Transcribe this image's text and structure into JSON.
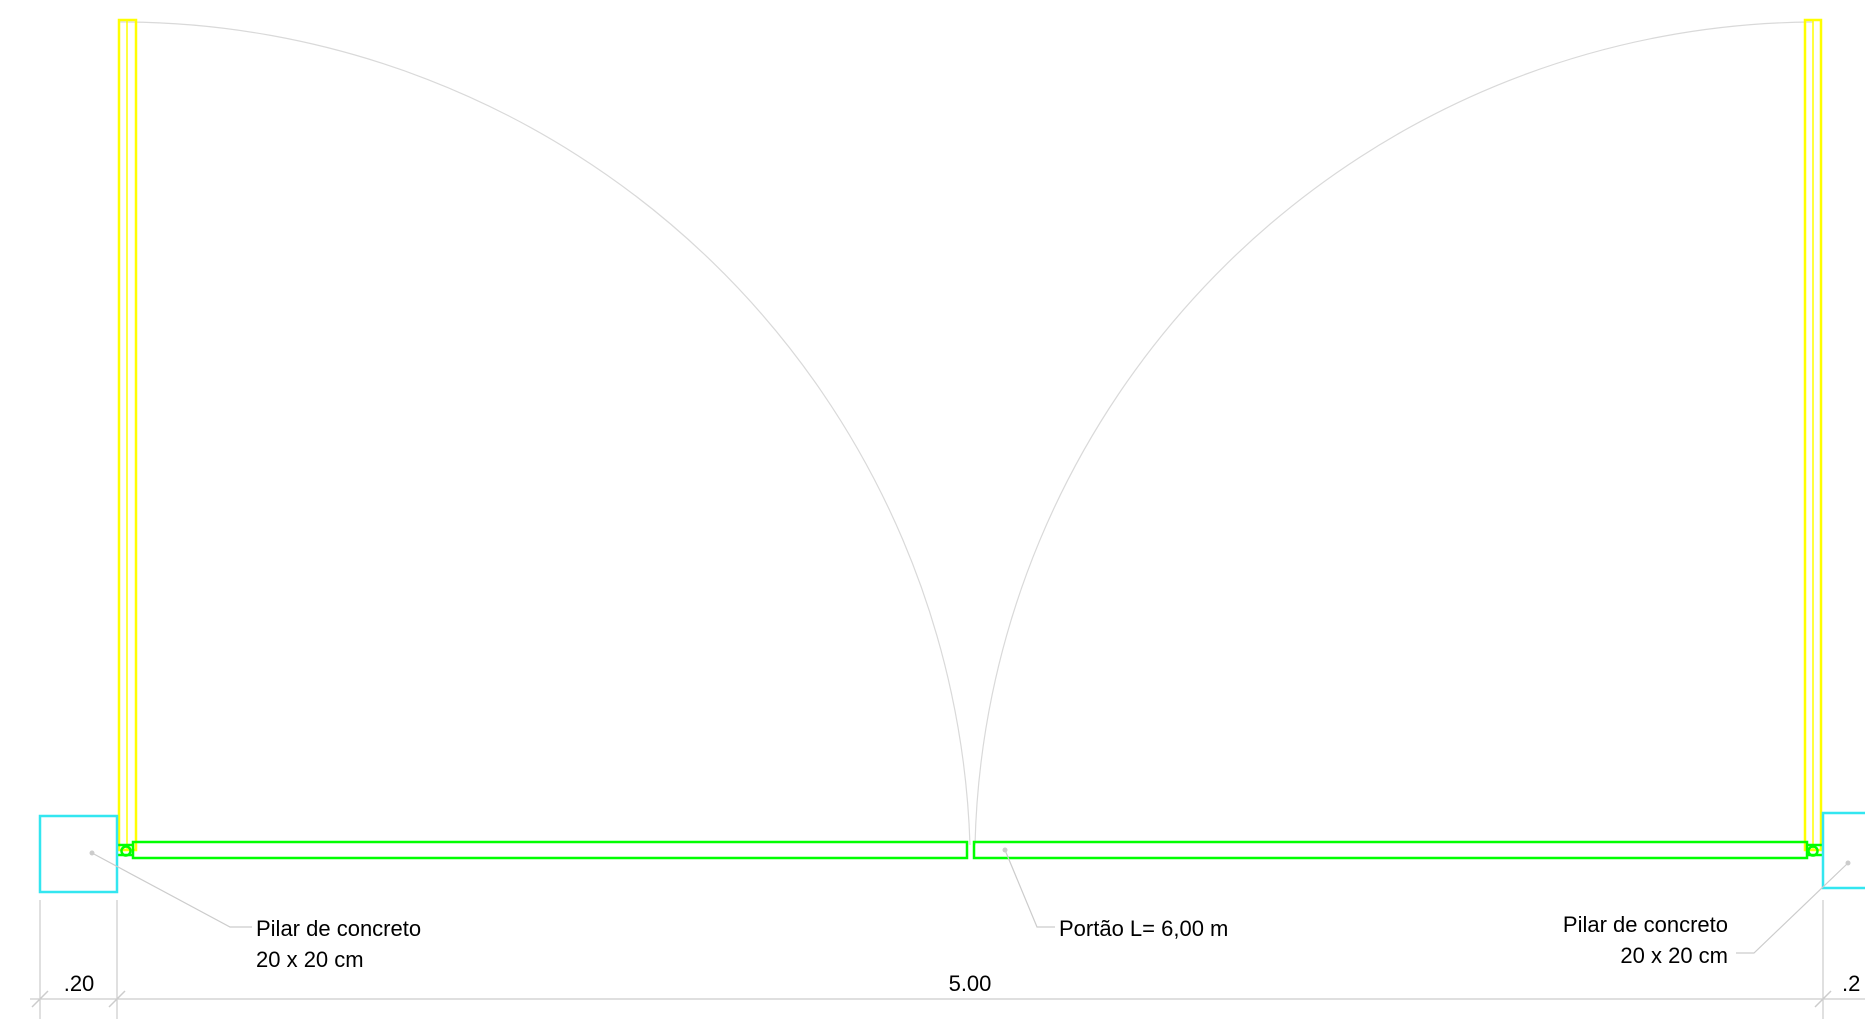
{
  "colors": {
    "background": "#ffffff",
    "gate_leaf_open": "#ffff00",
    "gate_leaf_closed": "#00ff00",
    "pillar": "#33e6f0",
    "swing_arc": "#d9d9d9",
    "leader": "#cccccc",
    "dimension_line": "#cccccc",
    "text": "#000000"
  },
  "labels": {
    "pillar_left": {
      "line1": "Pilar de concreto",
      "line2": "20 x 20 cm"
    },
    "pillar_right": {
      "line1": "Pilar de concreto",
      "line2": "20 x 20 cm"
    },
    "gate": "Portão L= 6,00 m"
  },
  "dimensions": {
    "left": ".20",
    "center": "5.00",
    "right": ".2"
  }
}
